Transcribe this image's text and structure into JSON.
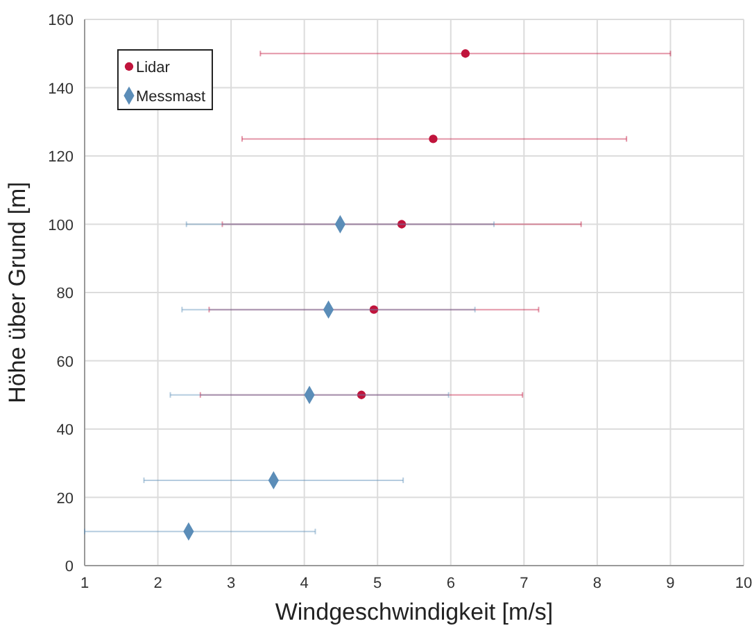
{
  "chart_data": {
    "type": "scatter",
    "xlabel": "Windgeschwindigkeit [m/s]",
    "ylabel": "Höhe über Grund [m]",
    "xlim": [
      1,
      10
    ],
    "xticks": [
      1,
      2,
      3,
      4,
      5,
      6,
      7,
      8,
      9,
      10
    ],
    "ylim": [
      0,
      160
    ],
    "yticks": [
      0,
      20,
      40,
      60,
      80,
      100,
      120,
      140,
      160
    ],
    "grid": true,
    "legend": "top left",
    "series": [
      {
        "name": "Lidar",
        "color": "#c0143c",
        "marker": "circle",
        "x": [
          4.78,
          4.95,
          5.33,
          5.76,
          6.2
        ],
        "values": [
          50,
          75,
          100,
          125,
          150
        ],
        "xerrors": [
          2.2,
          2.25,
          2.45,
          [
            3.15,
            8.4
          ],
          2.8
        ]
      },
      {
        "name": "Messmast",
        "color": "#5b8db8",
        "marker": "diamond",
        "x": [
          2.42,
          3.58,
          4.07,
          4.33,
          4.49
        ],
        "values": [
          10,
          25,
          50,
          75,
          100
        ],
        "xerrors": [
          [
            1,
            4.15
          ],
          1.77,
          1.9,
          2.0,
          2.1
        ]
      }
    ]
  }
}
